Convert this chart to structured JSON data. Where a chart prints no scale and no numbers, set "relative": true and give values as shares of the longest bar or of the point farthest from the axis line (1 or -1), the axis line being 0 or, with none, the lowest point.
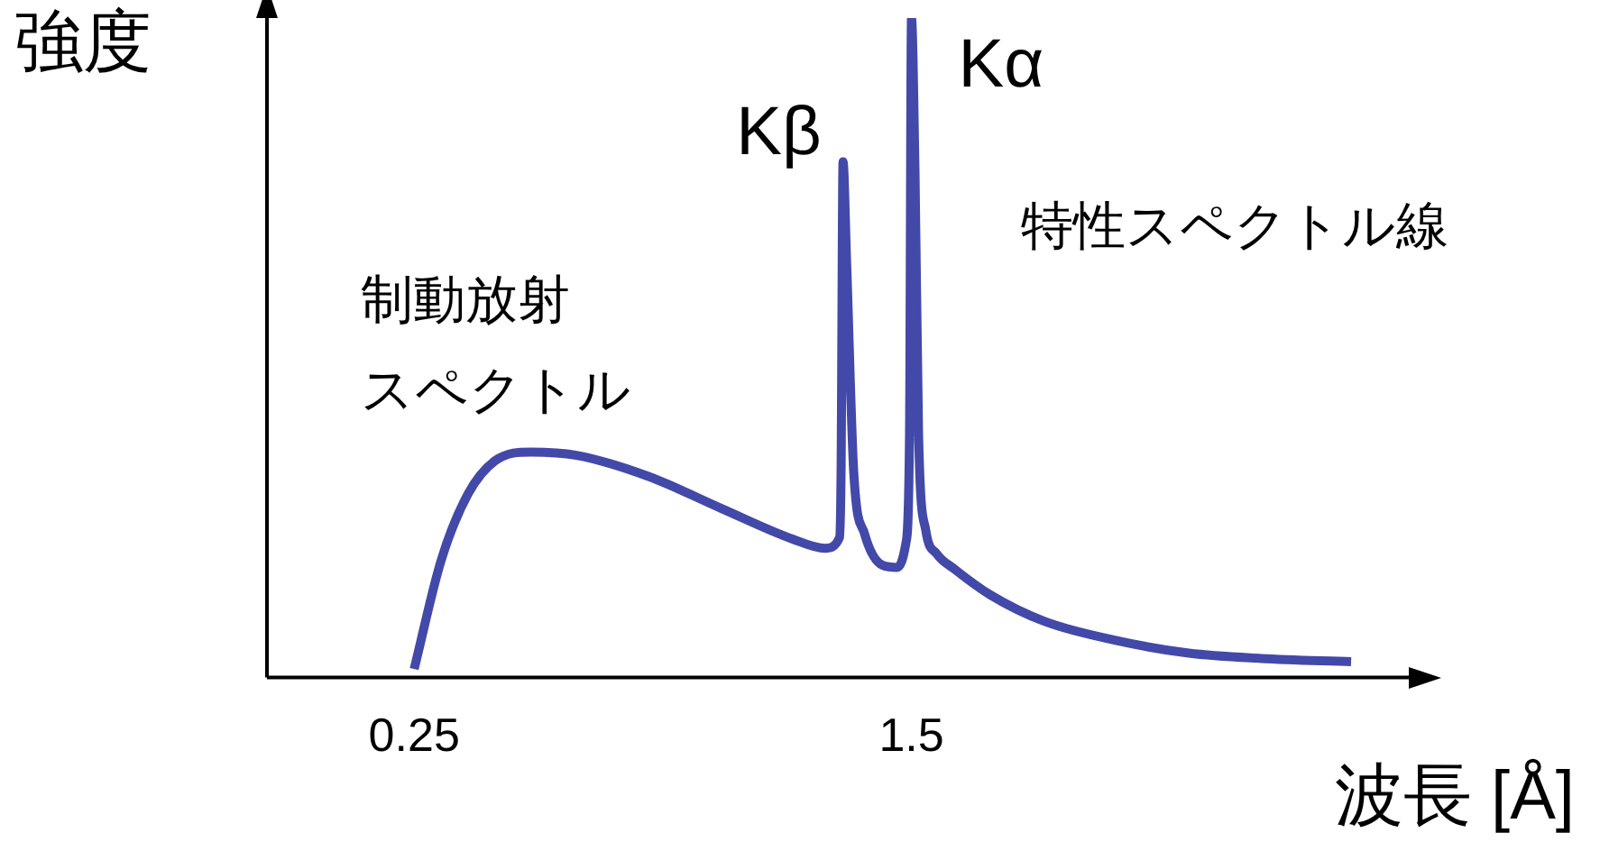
{
  "chart_data": {
    "type": "line",
    "relative": true,
    "ylabel": "強度",
    "xlabel": "波長 [Å]",
    "xlim": [
      -0.12,
      2.75
    ],
    "xticks": [
      0.25,
      1.5
    ],
    "grid": false,
    "legend": false,
    "marker": "none",
    "line_style": "solid",
    "x": [
      0.25,
      0.318,
      0.386,
      0.454,
      0.544,
      0.658,
      0.839,
      1.02,
      1.201,
      1.283,
      1.319,
      1.323,
      1.328,
      1.337,
      1.355,
      1.382,
      1.428,
      1.464,
      1.486,
      1.495,
      1.5,
      1.509,
      1.518,
      1.536,
      1.563,
      1.609,
      1.699,
      1.835,
      2.016,
      2.197,
      2.379,
      2.605
    ],
    "series": [
      {
        "color": "#4349a8",
        "values": [
          0.013,
          0.178,
          0.279,
          0.329,
          0.342,
          0.337,
          0.305,
          0.257,
          0.21,
          0.196,
          0.212,
          0.31,
          0.782,
          0.629,
          0.31,
          0.218,
          0.17,
          0.167,
          0.204,
          0.363,
          1,
          0.761,
          0.363,
          0.223,
          0.188,
          0.164,
          0.125,
          0.085,
          0.056,
          0.037,
          0.029,
          0.024
        ]
      }
    ],
    "annotations": [
      {
        "text": "Kβ",
        "x": 1.328,
        "y": 0.782
      },
      {
        "text": "Kα",
        "x": 1.5,
        "y": 1
      },
      "特性スペクトル線",
      "制動放射",
      "スペクトル"
    ]
  }
}
